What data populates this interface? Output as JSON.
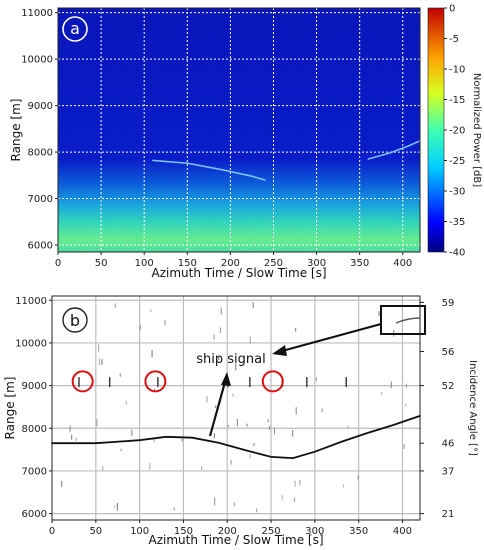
{
  "chart_data": [
    {
      "panel": "a",
      "type": "heatmap",
      "xlabel": "Azimuth Time / Slow Time [s]",
      "ylabel": "Range [m]",
      "xlim": [
        0,
        420
      ],
      "ylim": [
        5850,
        11100
      ],
      "xticks": [
        0,
        50,
        100,
        150,
        200,
        250,
        300,
        350,
        400
      ],
      "yticks": [
        6000,
        7000,
        8000,
        9000,
        10000,
        11000
      ],
      "grid": true,
      "colorbar": {
        "label": "Normalized Power [dB]",
        "range": [
          -40,
          0
        ],
        "ticks": [
          0,
          -5,
          -10,
          -15,
          -20,
          -25,
          -30,
          -35,
          -40
        ]
      },
      "series": [
        {
          "x": [
            110,
            150,
            190,
            225,
            240
          ],
          "y": [
            7820,
            7760,
            7620,
            7480,
            7400
          ]
        },
        {
          "x": [
            360,
            385,
            405,
            420
          ],
          "y": [
            7850,
            7980,
            8120,
            8240
          ]
        }
      ]
    },
    {
      "panel": "b",
      "type": "scatter",
      "xlabel": "Azimuth Time / Slow Time [s]",
      "ylabel": "Range [m]",
      "y2label": "Incidence Angle [°]",
      "xlim": [
        0,
        420
      ],
      "ylim": [
        5850,
        11100
      ],
      "xticks": [
        0,
        50,
        100,
        150,
        200,
        250,
        300,
        350,
        400
      ],
      "yticks": [
        6000,
        7000,
        8000,
        9000,
        10000,
        11000
      ],
      "y2ticks": [
        21,
        37,
        46,
        52,
        56,
        59
      ],
      "grid": true,
      "series": [
        {
          "x": [
            0,
            50,
            100,
            130,
            160,
            190,
            220,
            250,
            275,
            300,
            330,
            360,
            390,
            420
          ],
          "y": [
            7650,
            7650,
            7720,
            7800,
            7780,
            7660,
            7490,
            7330,
            7300,
            7450,
            7680,
            7890,
            8080,
            8290
          ]
        }
      ],
      "annotations": [
        "ship signal"
      ],
      "circled_x": [
        35,
        118,
        252
      ]
    }
  ],
  "badges": {
    "a": "a",
    "b": "b"
  }
}
